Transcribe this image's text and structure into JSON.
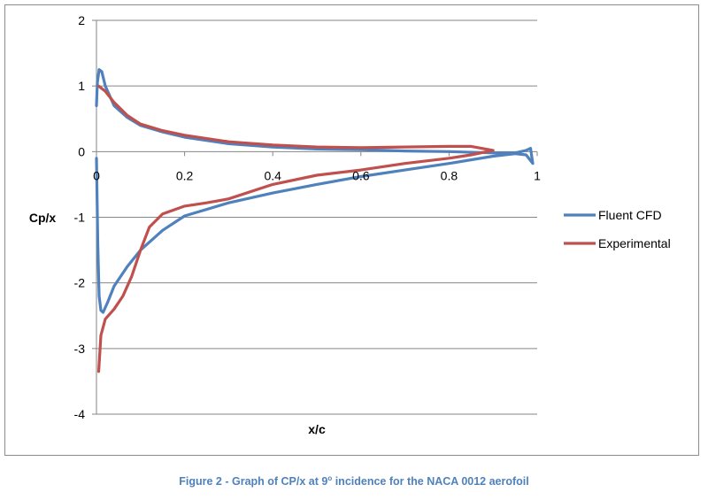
{
  "chart_data": {
    "type": "line",
    "title": "",
    "xlabel": "x/c",
    "ylabel": "Cp/x",
    "xlim": [
      0,
      1
    ],
    "ylim": [
      -4,
      2
    ],
    "xticks": [
      0,
      0.2,
      0.4,
      0.6,
      0.8,
      1
    ],
    "xtick_labels": [
      "0",
      "0.2",
      "0.4",
      "0.6",
      "0.8",
      "1"
    ],
    "yticks": [
      2,
      1,
      0,
      -1,
      -2,
      -3,
      -4
    ],
    "ytick_labels": [
      "2",
      "1",
      "0",
      "-1",
      "-2",
      "-3",
      "-4"
    ],
    "grid": true,
    "legend_position": "right",
    "series": [
      {
        "name": "Fluent CFD",
        "color": "#4f81bd",
        "x": [
          0.0,
          0.002,
          0.006,
          0.012,
          0.02,
          0.04,
          0.07,
          0.1,
          0.15,
          0.2,
          0.3,
          0.4,
          0.5,
          0.6,
          0.7,
          0.8,
          0.9,
          0.95,
          0.975,
          0.985,
          0.99,
          0.975,
          0.95,
          0.9,
          0.8,
          0.7,
          0.6,
          0.5,
          0.4,
          0.3,
          0.2,
          0.15,
          0.1,
          0.07,
          0.04,
          0.025,
          0.015,
          0.01,
          0.006,
          0.003,
          0.0
        ],
        "y": [
          0.7,
          1.05,
          1.25,
          1.22,
          1.0,
          0.7,
          0.52,
          0.4,
          0.3,
          0.22,
          0.12,
          0.07,
          0.04,
          0.03,
          0.01,
          0.0,
          -0.02,
          -0.02,
          0.02,
          0.05,
          -0.18,
          -0.05,
          -0.03,
          -0.07,
          -0.18,
          -0.28,
          -0.38,
          -0.5,
          -0.63,
          -0.78,
          -0.98,
          -1.2,
          -1.5,
          -1.75,
          -2.05,
          -2.3,
          -2.45,
          -2.42,
          -2.2,
          -1.4,
          -0.1
        ]
      },
      {
        "name": "Experimental",
        "color": "#c0504d",
        "x": [
          0.005,
          0.02,
          0.04,
          0.07,
          0.1,
          0.15,
          0.2,
          0.3,
          0.4,
          0.5,
          0.6,
          0.7,
          0.8,
          0.85,
          0.9,
          0.85,
          0.8,
          0.7,
          0.6,
          0.5,
          0.4,
          0.3,
          0.25,
          0.2,
          0.15,
          0.12,
          0.1,
          0.08,
          0.06,
          0.04,
          0.02,
          0.01,
          0.005
        ],
        "y": [
          1.0,
          0.92,
          0.75,
          0.55,
          0.42,
          0.32,
          0.25,
          0.15,
          0.1,
          0.07,
          0.06,
          0.07,
          0.08,
          0.08,
          0.02,
          -0.05,
          -0.1,
          -0.18,
          -0.28,
          -0.36,
          -0.5,
          -0.72,
          -0.78,
          -0.83,
          -0.95,
          -1.15,
          -1.5,
          -1.9,
          -2.2,
          -2.4,
          -2.55,
          -2.8,
          -3.35
        ]
      }
    ]
  },
  "caption": {
    "prefix": "Figure 2 - Graph of CP/x at 9",
    "sup": "o",
    "suffix": " incidence for the NACA 0012 aerofoil"
  }
}
